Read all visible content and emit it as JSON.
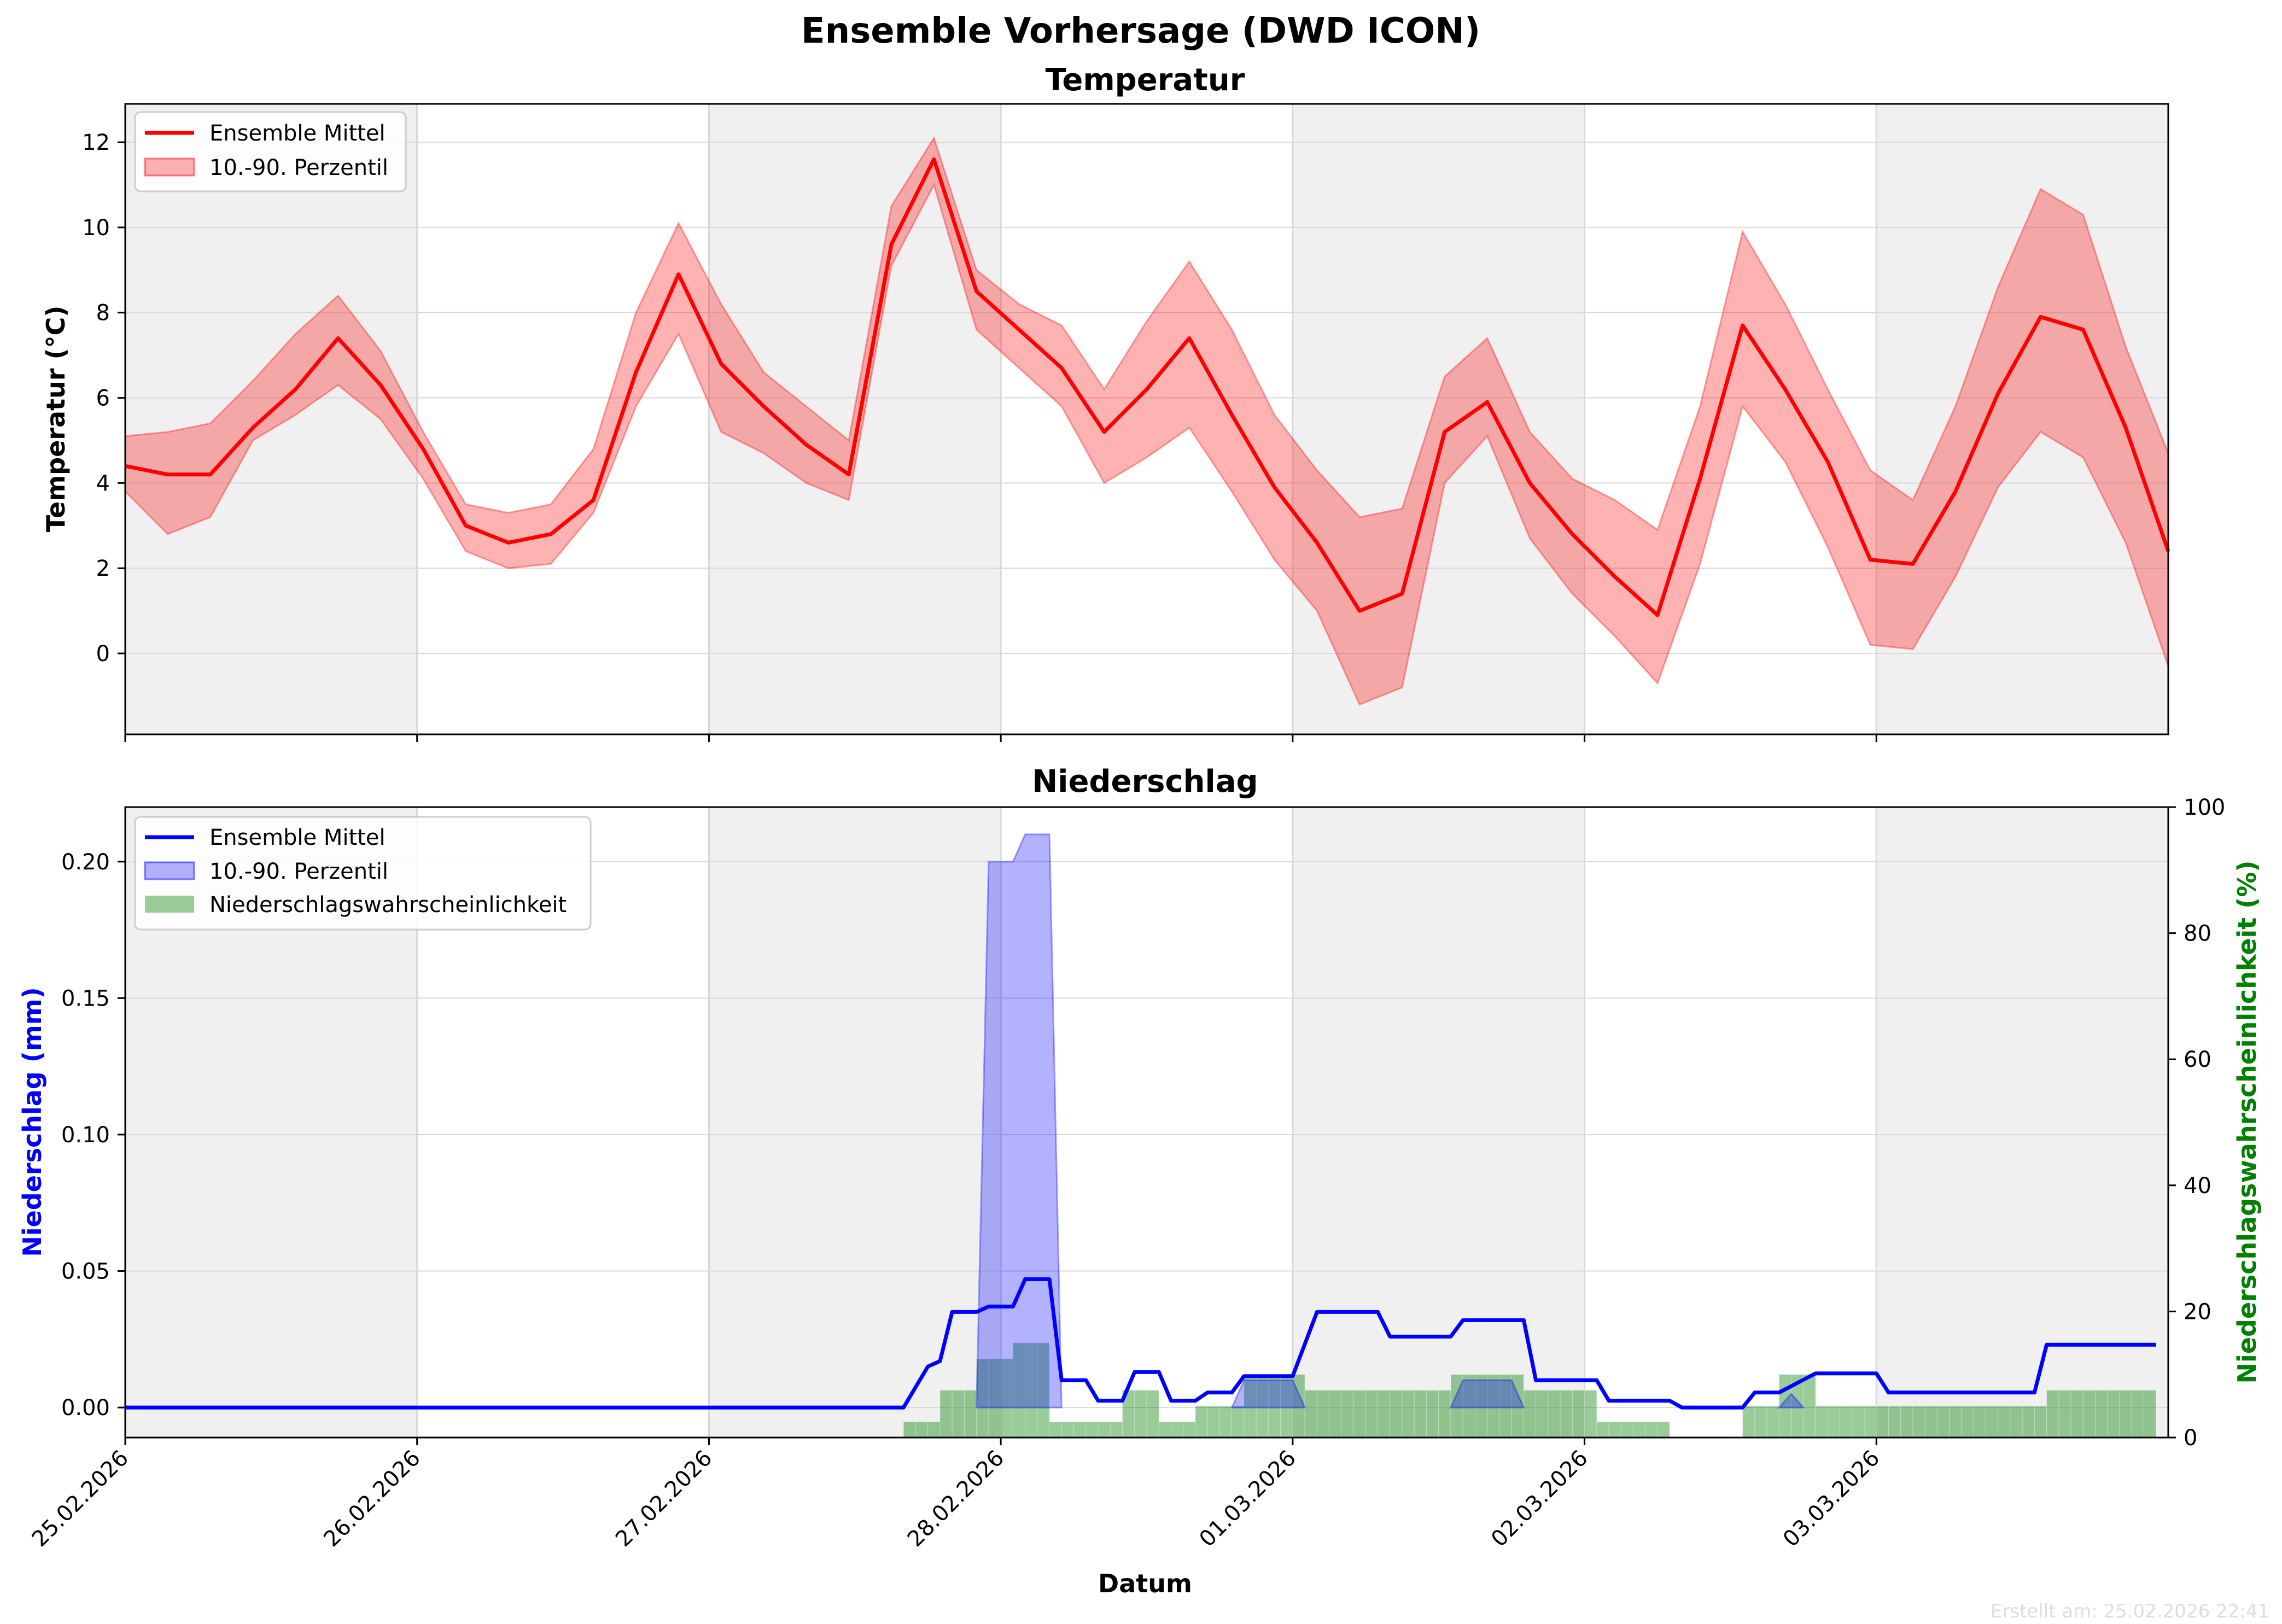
{
  "figure": {
    "suptitle": "Ensemble Vorhersage (DWD ICON)",
    "footer": "Erstellt am: 25.02.2026 22:41"
  },
  "colors": {
    "temp_mean": "#ff0000",
    "temp_band": "#ff0000",
    "precip_mean": "#0000ff",
    "precip_band": "#0000ff",
    "precip_prob": "#008000",
    "shade": "#f0f0f0",
    "grid": "#d9d9d9"
  },
  "chart_data": [
    {
      "type": "line",
      "title": "Temperatur",
      "xlabel": "",
      "ylabel": "Temperatur (°C)",
      "x_range": [
        "2026-02-25 00:00",
        "2026-03-03 23:00"
      ],
      "ylim": [
        -1.9,
        12.9
      ],
      "yticks": [
        0,
        2,
        4,
        6,
        8,
        10,
        12
      ],
      "grid": true,
      "legend": "top-left",
      "hours": [
        0,
        3,
        6,
        9,
        12,
        15,
        18,
        21,
        24,
        27,
        30,
        33,
        36,
        39,
        42,
        45,
        48,
        51,
        54,
        57,
        60,
        63,
        66,
        69,
        72,
        75,
        78,
        81,
        84,
        87,
        90,
        93,
        96,
        99,
        102,
        105,
        108,
        111,
        114,
        117,
        120,
        123,
        126,
        129,
        132,
        135,
        138,
        141,
        144,
        147,
        150,
        153,
        156,
        159,
        162,
        165,
        167
      ],
      "series": [
        {
          "name": "Ensemble Mittel",
          "values": [
            4.4,
            4.2,
            4.2,
            5.3,
            6.2,
            7.4,
            6.3,
            4.8,
            3.0,
            2.6,
            2.8,
            3.6,
            6.6,
            8.9,
            6.8,
            5.8,
            4.9,
            4.2,
            9.6,
            11.6,
            8.5,
            7.6,
            6.7,
            5.2,
            6.2,
            7.4,
            5.6,
            3.9,
            2.6,
            1.0,
            1.4,
            5.2,
            5.9,
            4.0,
            2.8,
            1.8,
            0.9,
            4.1,
            7.7,
            6.2,
            4.5,
            2.2,
            2.1,
            3.8,
            6.1,
            7.9,
            7.6,
            5.3,
            2.4,
            null,
            null,
            null,
            null,
            null,
            null,
            null,
            null
          ]
        },
        {
          "name": "10.-90. Perzentil",
          "low": [
            3.8,
            2.8,
            3.2,
            5.0,
            5.6,
            6.3,
            5.5,
            4.1,
            2.4,
            2.0,
            2.1,
            3.3,
            5.8,
            7.5,
            5.2,
            4.7,
            4.0,
            3.6,
            9.1,
            11.0,
            7.6,
            6.7,
            5.8,
            4.0,
            4.6,
            5.3,
            3.8,
            2.2,
            1.0,
            -1.2,
            -0.8,
            4.0,
            5.1,
            2.7,
            1.4,
            0.4,
            -0.7,
            2.1,
            5.8,
            4.5,
            2.5,
            0.2,
            0.1,
            1.8,
            3.9,
            5.2,
            4.6,
            2.6,
            -0.3,
            null,
            null,
            null,
            null,
            null,
            null,
            null,
            null
          ],
          "high": [
            5.1,
            5.2,
            5.4,
            6.4,
            7.5,
            8.4,
            7.1,
            5.2,
            3.5,
            3.3,
            3.5,
            4.8,
            8.0,
            10.1,
            8.2,
            6.6,
            5.8,
            5.0,
            10.5,
            12.1,
            9.0,
            8.2,
            7.7,
            6.2,
            7.8,
            9.2,
            7.6,
            5.6,
            4.3,
            3.2,
            3.4,
            6.5,
            7.4,
            5.2,
            4.1,
            3.6,
            2.9,
            5.8,
            9.9,
            8.2,
            6.2,
            4.3,
            3.6,
            5.8,
            8.6,
            10.9,
            10.3,
            7.2,
            4.7,
            null,
            null,
            null,
            null,
            null,
            null,
            null,
            null
          ]
        }
      ]
    },
    {
      "type": "line",
      "title": "Niederschlag",
      "xlabel": "Datum",
      "ylabel": "Niederschlag (mm)",
      "y2label": "Niederschlagswahrscheinlichkeit (%)",
      "xticks": [
        "25.02.2026",
        "26.02.2026",
        "27.02.2026",
        "28.02.2026",
        "01.03.2026",
        "02.03.2026",
        "03.03.2026"
      ],
      "ylim": [
        -0.011,
        0.22
      ],
      "yticks": [
        "0.00",
        "0.05",
        "0.10",
        "0.15",
        "0.20"
      ],
      "y2lim": [
        0,
        100
      ],
      "y2ticks": [
        "0",
        "20",
        "40",
        "60",
        "80",
        "100"
      ],
      "grid": true,
      "legend": "top-left",
      "mean": [
        [
          0,
          0
        ],
        [
          64,
          0
        ],
        [
          66,
          0.015
        ],
        [
          67,
          0.017
        ],
        [
          68,
          0.035
        ],
        [
          70,
          0.035
        ],
        [
          71,
          0.037
        ],
        [
          73,
          0.037
        ],
        [
          74,
          0.047
        ],
        [
          76,
          0.047
        ],
        [
          77,
          0.01
        ],
        [
          79,
          0.01
        ],
        [
          80,
          0.0025
        ],
        [
          82,
          0.0025
        ],
        [
          83,
          0.013
        ],
        [
          85,
          0.013
        ],
        [
          86,
          0.0025
        ],
        [
          88,
          0.0025
        ],
        [
          89,
          0.0055
        ],
        [
          91,
          0.0055
        ],
        [
          92,
          0.0115
        ],
        [
          96,
          0.0115
        ],
        [
          98,
          0.035
        ],
        [
          103,
          0.035
        ],
        [
          104,
          0.026
        ],
        [
          109,
          0.026
        ],
        [
          110,
          0.032
        ],
        [
          115,
          0.032
        ],
        [
          116,
          0.01
        ],
        [
          121,
          0.01
        ],
        [
          122,
          0.0025
        ],
        [
          127,
          0.0025
        ],
        [
          128,
          0
        ],
        [
          133,
          0
        ],
        [
          134,
          0.0055
        ],
        [
          136,
          0.0055
        ],
        [
          139,
          0.0125
        ],
        [
          144,
          0.0125
        ],
        [
          145,
          0.0055
        ],
        [
          157,
          0.0055
        ],
        [
          158,
          0.023
        ],
        [
          167,
          0.023
        ]
      ],
      "band": [
        [
          70,
          0
        ],
        [
          71,
          0.2
        ],
        [
          73,
          0.2
        ],
        [
          74,
          0.21
        ],
        [
          76,
          0.21
        ],
        [
          77,
          0
        ],
        [
          91,
          0
        ],
        [
          92,
          0.01
        ],
        [
          96,
          0.01
        ],
        [
          97,
          0
        ],
        [
          109,
          0
        ],
        [
          110,
          0.01
        ],
        [
          114,
          0.01
        ],
        [
          115,
          0
        ],
        [
          136,
          0
        ],
        [
          137,
          0.005
        ],
        [
          138,
          0
        ]
      ],
      "probability": [
        [
          64,
          2.5
        ],
        [
          67,
          7.5
        ],
        [
          70,
          12.5
        ],
        [
          73,
          15
        ],
        [
          76,
          2.5
        ],
        [
          82,
          7.5
        ],
        [
          85,
          2.5
        ],
        [
          88,
          5
        ],
        [
          92,
          10
        ],
        [
          97,
          7.5
        ],
        [
          109,
          10
        ],
        [
          115,
          7.5
        ],
        [
          121,
          2.5
        ],
        [
          127,
          0
        ],
        [
          133,
          5
        ],
        [
          136,
          10
        ],
        [
          139,
          5
        ],
        [
          158,
          7.5
        ],
        [
          167,
          7.5
        ]
      ],
      "series_names": [
        "Ensemble Mittel",
        "10.-90. Perzentil",
        "Niederschlagswahrscheinlichkeit"
      ]
    }
  ]
}
